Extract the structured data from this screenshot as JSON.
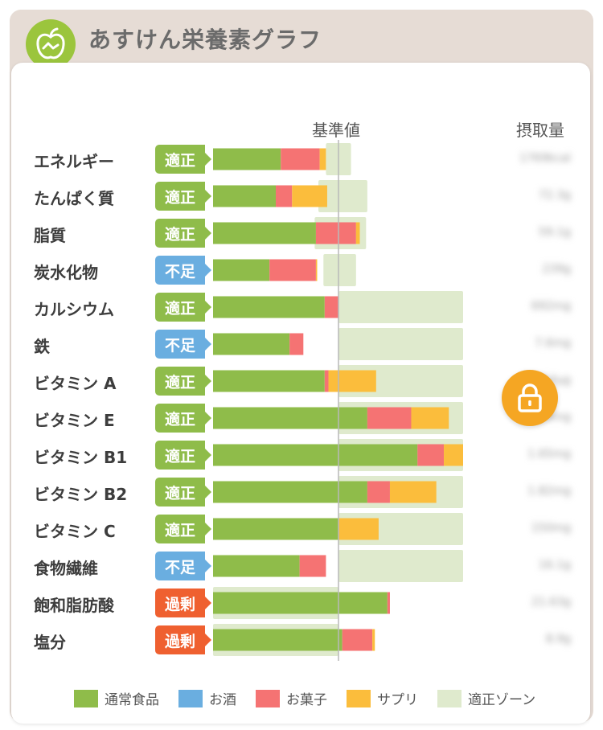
{
  "header": {
    "title": "あすけん栄養素グラフ",
    "logo_icon": "apple-icon"
  },
  "columns": {
    "baseline_label": "基準値",
    "intake_label": "摂取量"
  },
  "colors": {
    "normal_food": "#8fbc4a",
    "alcohol": "#6aaee0",
    "sweets": "#f57373",
    "supplement": "#fbbd3c",
    "zone": "#dfeacd",
    "badge_ok": "#8fbc4a",
    "badge_low": "#6aaee0",
    "badge_high": "#ef6030",
    "lock": "#f5a623"
  },
  "lock_icon": "lock-icon",
  "chart_data": {
    "type": "bar",
    "stacked": true,
    "orientation": "horizontal",
    "unit": "% of 基準値",
    "baseline": 100,
    "categories": [
      "エネルギー",
      "たんぱく質",
      "脂質",
      "炭水化物",
      "カルシウム",
      "鉄",
      "ビタミン A",
      "ビタミン E",
      "ビタミン B1",
      "ビタミン B2",
      "ビタミン C",
      "食物繊維",
      "飽和脂肪酸",
      "塩分"
    ],
    "statuses": [
      "適正",
      "適正",
      "適正",
      "不足",
      "適正",
      "不足",
      "適正",
      "適正",
      "適正",
      "適正",
      "適正",
      "不足",
      "過剰",
      "過剰"
    ],
    "series": [
      {
        "name": "通常食品",
        "values": [
          54,
          50,
          82,
          45,
          89,
          61,
          89,
          123,
          163,
          123,
          100,
          69,
          139,
          103
        ]
      },
      {
        "name": "お酒",
        "values": [
          0,
          0,
          0,
          0,
          0,
          0,
          0,
          0,
          0,
          0,
          0,
          0,
          0,
          0
        ]
      },
      {
        "name": "お菓子",
        "values": [
          31,
          13,
          32,
          37,
          11,
          11,
          3,
          35,
          21,
          18,
          0,
          21,
          2,
          24
        ]
      },
      {
        "name": "サプリ",
        "values": [
          5,
          28,
          3,
          1,
          0,
          0,
          38,
          30,
          16,
          37,
          32,
          0,
          0,
          2
        ]
      }
    ],
    "appropriate_zone": [
      [
        90,
        110
      ],
      [
        84,
        123
      ],
      [
        81,
        122
      ],
      [
        88,
        114
      ],
      [
        100,
        200
      ],
      [
        100,
        200
      ],
      [
        100,
        200
      ],
      [
        100,
        200
      ],
      [
        100,
        200
      ],
      [
        100,
        200
      ],
      [
        100,
        200
      ],
      [
        100,
        200
      ],
      [
        0,
        100
      ],
      [
        0,
        100
      ]
    ],
    "intake_values": [
      "1769kcal",
      "72.3g",
      "59.1g",
      "239g",
      "692mg",
      "7.6mg",
      "754µg",
      "8.9mg",
      "1.65mg",
      "1.82mg",
      "150mg",
      "16.1g",
      "21.63g",
      "8.9g"
    ]
  },
  "legend": [
    "通常食品",
    "お酒",
    "お菓子",
    "サプリ",
    "適正ゾーン"
  ]
}
